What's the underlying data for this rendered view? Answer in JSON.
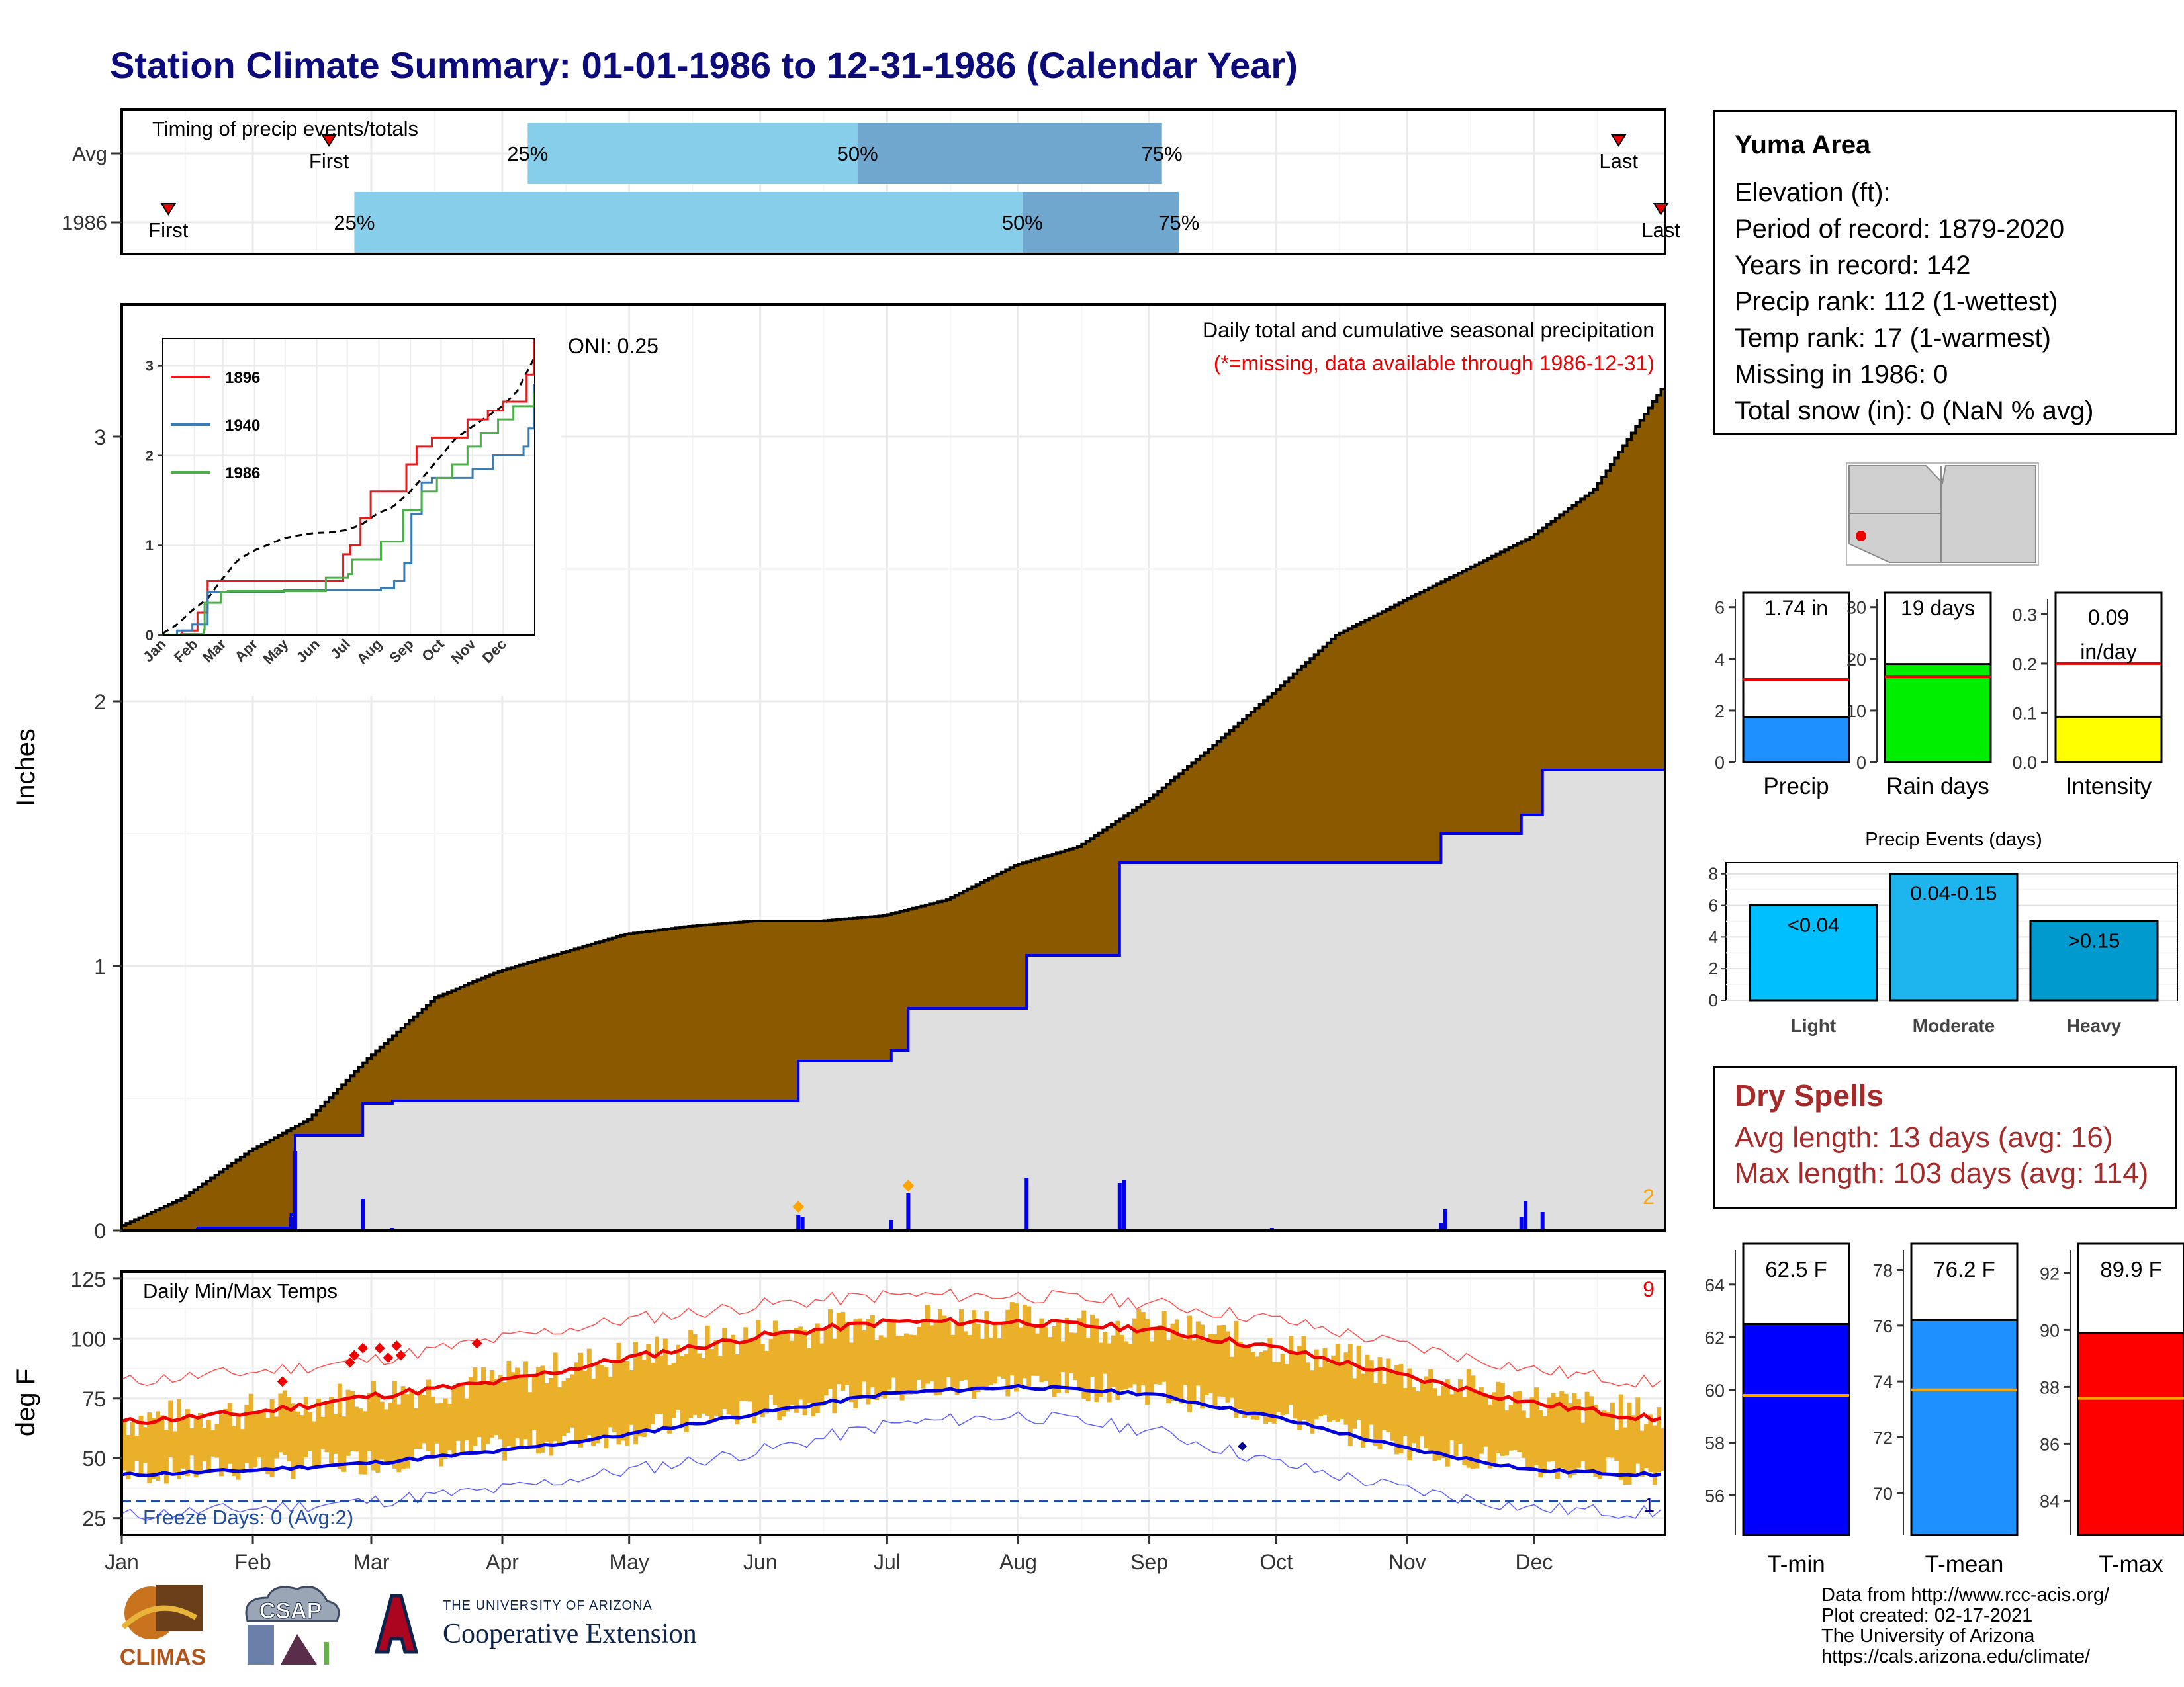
{
  "title": "Station Climate Summary: 01-01-1986 to 12-31-1986 (Calendar Year)",
  "timing": {
    "title": "Timing of precip events/totals",
    "rows": [
      {
        "label": "Avg",
        "first_doy": 50,
        "last_doy": 355,
        "p25_doy": 97,
        "p50_doy": 175,
        "p75_doy": 247
      },
      {
        "label": "1986",
        "first_doy": 12,
        "last_doy": 365,
        "p25_doy": 56,
        "p50_doy": 214,
        "p75_doy": 251
      }
    ],
    "first_label": "First",
    "last_label": "Last",
    "p25_label": "25%",
    "p50_label": "50%",
    "p75_label": "75%"
  },
  "precip_chart": {
    "ylabel": "Inches",
    "yticks": [
      "0",
      "1",
      "2",
      "3"
    ],
    "oni": "ONI: 0.25",
    "subtitle": "Daily total and cumulative seasonal precipitation",
    "note": "(*=missing, data available through 1986-12-31)",
    "corner_count": "2",
    "colors": {
      "avg_fill": "#8b5a00",
      "obs_fill": "#dfdfdf",
      "obs_line": "#0000ee",
      "bars": "#0000ee",
      "marker": "#ffa500"
    }
  },
  "inset": {
    "yticks": [
      "0",
      "1",
      "2",
      "3"
    ],
    "months": [
      "Jan",
      "Feb",
      "Mar",
      "Apr",
      "May",
      "Jun",
      "Jul",
      "Aug",
      "Sep",
      "Oct",
      "Nov",
      "Dec"
    ],
    "legend": [
      {
        "name": "1896",
        "color": "#e41a1c"
      },
      {
        "name": "1940",
        "color": "#377eb8"
      },
      {
        "name": "1986",
        "color": "#4daf4a"
      }
    ]
  },
  "temp_chart": {
    "title": "Daily Min/Max Temps",
    "ylabel": "deg F",
    "yticks": [
      "25",
      "50",
      "75",
      "100",
      "125"
    ],
    "freeze_label": "Freeze Days: 0 (Avg:2)",
    "count_red": "9",
    "count_blue": "1",
    "months": [
      "Jan",
      "Feb",
      "Mar",
      "Apr",
      "May",
      "Jun",
      "Jul",
      "Aug",
      "Sep",
      "Oct",
      "Nov",
      "Dec"
    ]
  },
  "info": {
    "name": "Yuma Area",
    "rows": [
      "Elevation (ft):",
      "Period of record: 1879-2020",
      "Years in record: 142",
      "Precip rank: 112 (1-wettest)",
      "Temp rank: 17 (1-warmest)",
      "Missing in 1986: 0",
      "Total snow (in): 0 (NaN % avg)"
    ]
  },
  "summary_bars": [
    {
      "label": "Precip",
      "value_text": "1.74 in",
      "value": 1.74,
      "avg": 3.2,
      "ymax": 6.3,
      "ticks": [
        "0",
        "2",
        "4",
        "6"
      ],
      "tick_vals": [
        0,
        2,
        4,
        6
      ],
      "color": "#1e90ff"
    },
    {
      "label": "Rain days",
      "value_text": "19 days",
      "value": 19,
      "avg": 16.5,
      "ymax": 31.5,
      "ticks": [
        "0",
        "10",
        "20",
        "30"
      ],
      "tick_vals": [
        0,
        10,
        20,
        30
      ],
      "color": "#00ee00"
    },
    {
      "label": "Intensity",
      "value_text": "0.09 in/day",
      "value": 0.092,
      "avg": 0.2,
      "ymax": 0.33,
      "ticks": [
        "0.0",
        "0.1",
        "0.2",
        "0.3"
      ],
      "tick_vals": [
        0,
        0.1,
        0.2,
        0.3
      ],
      "color": "#ffff00"
    }
  ],
  "precip_events": {
    "title": "Precip Events (days)",
    "ticks": [
      "0",
      "2",
      "4",
      "6",
      "8"
    ],
    "bars": [
      {
        "label": "Light",
        "range": "<0.04",
        "value": 6,
        "color": "#00bfff"
      },
      {
        "label": "Moderate",
        "range": "0.04-0.15",
        "value": 8,
        "color": "#1eb4ee"
      },
      {
        "label": "Heavy",
        "range": ">0.15",
        "value": 5,
        "color": "#009ace"
      }
    ]
  },
  "dry_spells": {
    "title": "Dry Spells",
    "avg_length": "Avg length: 13 days (avg: 16)",
    "max_length": "Max length: 103 days (avg: 114)"
  },
  "temp_bars": [
    {
      "label": "T-min",
      "value_text": "62.5 F",
      "value": 62.5,
      "avg": 59.8,
      "ymin": 54.5,
      "ymax": 65.3,
      "ticks": [
        "56",
        "58",
        "60",
        "62",
        "64"
      ],
      "tick_vals": [
        56,
        58,
        60,
        62,
        64
      ],
      "color": "#0000ff"
    },
    {
      "label": "T-mean",
      "value_text": "76.2 F",
      "value": 76.2,
      "avg": 73.7,
      "ymin": 68.5,
      "ymax": 78.7,
      "ticks": [
        "70",
        "72",
        "74",
        "76",
        "78"
      ],
      "tick_vals": [
        70,
        72,
        74,
        76,
        78
      ],
      "color": "#1e90ff"
    },
    {
      "label": "T-max",
      "value_text": "89.9 F",
      "value": 89.9,
      "avg": 87.6,
      "ymin": 82.8,
      "ymax": 92.8,
      "ticks": [
        "84",
        "86",
        "88",
        "90",
        "92"
      ],
      "tick_vals": [
        84,
        86,
        88,
        90,
        92
      ],
      "color": "#ff0000"
    }
  ],
  "credits": [
    "Data from http://www.rcc-acis.org/",
    "Plot created: 02-17-2021",
    "The University of Arizona",
    "https://cals.arizona.edu/climate/"
  ],
  "logos": {
    "climas": "CLIMAS",
    "csap": "CSAP",
    "ua_small": "THE UNIVERSITY OF ARIZONA",
    "ua_big": "Cooperative Extension"
  },
  "chart_data": {
    "type": "area",
    "title": "Station Climate Summary: 01-01-1986 to 12-31-1986 (Calendar Year)",
    "ylabel": "Inches",
    "ylim": [
      0,
      3.5
    ],
    "x_units": "day of year 1986",
    "avg_cumulative": [
      [
        1,
        0.02
      ],
      [
        15,
        0.12
      ],
      [
        31,
        0.3
      ],
      [
        45,
        0.42
      ],
      [
        59,
        0.65
      ],
      [
        75,
        0.88
      ],
      [
        90,
        0.98
      ],
      [
        105,
        1.05
      ],
      [
        120,
        1.12
      ],
      [
        135,
        1.15
      ],
      [
        150,
        1.17
      ],
      [
        166,
        1.17
      ],
      [
        181,
        1.19
      ],
      [
        196,
        1.25
      ],
      [
        212,
        1.38
      ],
      [
        227,
        1.45
      ],
      [
        243,
        1.62
      ],
      [
        258,
        1.82
      ],
      [
        273,
        2.03
      ],
      [
        288,
        2.25
      ],
      [
        304,
        2.38
      ],
      [
        319,
        2.5
      ],
      [
        334,
        2.62
      ],
      [
        349,
        2.8
      ],
      [
        365,
        3.18
      ]
    ],
    "obs_cumulative": [
      [
        1,
        0.0
      ],
      [
        19,
        0.01
      ],
      [
        33,
        0.01
      ],
      [
        41,
        0.06
      ],
      [
        42,
        0.36
      ],
      [
        57,
        0.36
      ],
      [
        58,
        0.48
      ],
      [
        65,
        0.49
      ],
      [
        160,
        0.49
      ],
      [
        161,
        0.64
      ],
      [
        182,
        0.64
      ],
      [
        183,
        0.68
      ],
      [
        186,
        0.68
      ],
      [
        187,
        0.84
      ],
      [
        214,
        0.84
      ],
      [
        215,
        1.04
      ],
      [
        236,
        1.04
      ],
      [
        237,
        1.39
      ],
      [
        312,
        1.39
      ],
      [
        313,
        1.5
      ],
      [
        331,
        1.5
      ],
      [
        332,
        1.57
      ],
      [
        336,
        1.57
      ],
      [
        337,
        1.74
      ],
      [
        365,
        1.74
      ]
    ],
    "daily_precip": [
      [
        19,
        0.01
      ],
      [
        41,
        0.05
      ],
      [
        42,
        0.3
      ],
      [
        58,
        0.12
      ],
      [
        65,
        0.01
      ],
      [
        161,
        0.06
      ],
      [
        162,
        0.05
      ],
      [
        183,
        0.04
      ],
      [
        187,
        0.14
      ],
      [
        215,
        0.2
      ],
      [
        237,
        0.18
      ],
      [
        238,
        0.19
      ],
      [
        273,
        0.01
      ],
      [
        313,
        0.03
      ],
      [
        314,
        0.08
      ],
      [
        332,
        0.05
      ],
      [
        333,
        0.11
      ],
      [
        337,
        0.07
      ]
    ],
    "temps": {
      "ylim": [
        18,
        128
      ],
      "avg_max": [
        [
          1,
          65
        ],
        [
          32,
          69
        ],
        [
          60,
          76
        ],
        [
          91,
          82
        ],
        [
          121,
          92
        ],
        [
          152,
          101
        ],
        [
          182,
          107
        ],
        [
          213,
          107
        ],
        [
          244,
          104
        ],
        [
          274,
          96
        ],
        [
          305,
          84
        ],
        [
          335,
          73
        ],
        [
          365,
          66
        ]
      ],
      "avg_min": [
        [
          1,
          43
        ],
        [
          32,
          45
        ],
        [
          60,
          48
        ],
        [
          91,
          53
        ],
        [
          121,
          60
        ],
        [
          152,
          69
        ],
        [
          182,
          77
        ],
        [
          213,
          80
        ],
        [
          244,
          77
        ],
        [
          274,
          67
        ],
        [
          305,
          54
        ],
        [
          335,
          45
        ],
        [
          365,
          43
        ]
      ],
      "record_max": [
        [
          1,
          82
        ],
        [
          32,
          86
        ],
        [
          60,
          91
        ],
        [
          91,
          100
        ],
        [
          121,
          108
        ],
        [
          152,
          114
        ],
        [
          182,
          118
        ],
        [
          213,
          118
        ],
        [
          244,
          115
        ],
        [
          274,
          108
        ],
        [
          305,
          97
        ],
        [
          335,
          87
        ],
        [
          365,
          81
        ]
      ],
      "record_min": [
        [
          1,
          26
        ],
        [
          32,
          29
        ],
        [
          60,
          32
        ],
        [
          91,
          37
        ],
        [
          121,
          45
        ],
        [
          152,
          53
        ],
        [
          182,
          64
        ],
        [
          213,
          68
        ],
        [
          244,
          62
        ],
        [
          274,
          48
        ],
        [
          305,
          37
        ],
        [
          335,
          29
        ],
        [
          365,
          27
        ]
      ],
      "freeze_line": 32
    }
  }
}
